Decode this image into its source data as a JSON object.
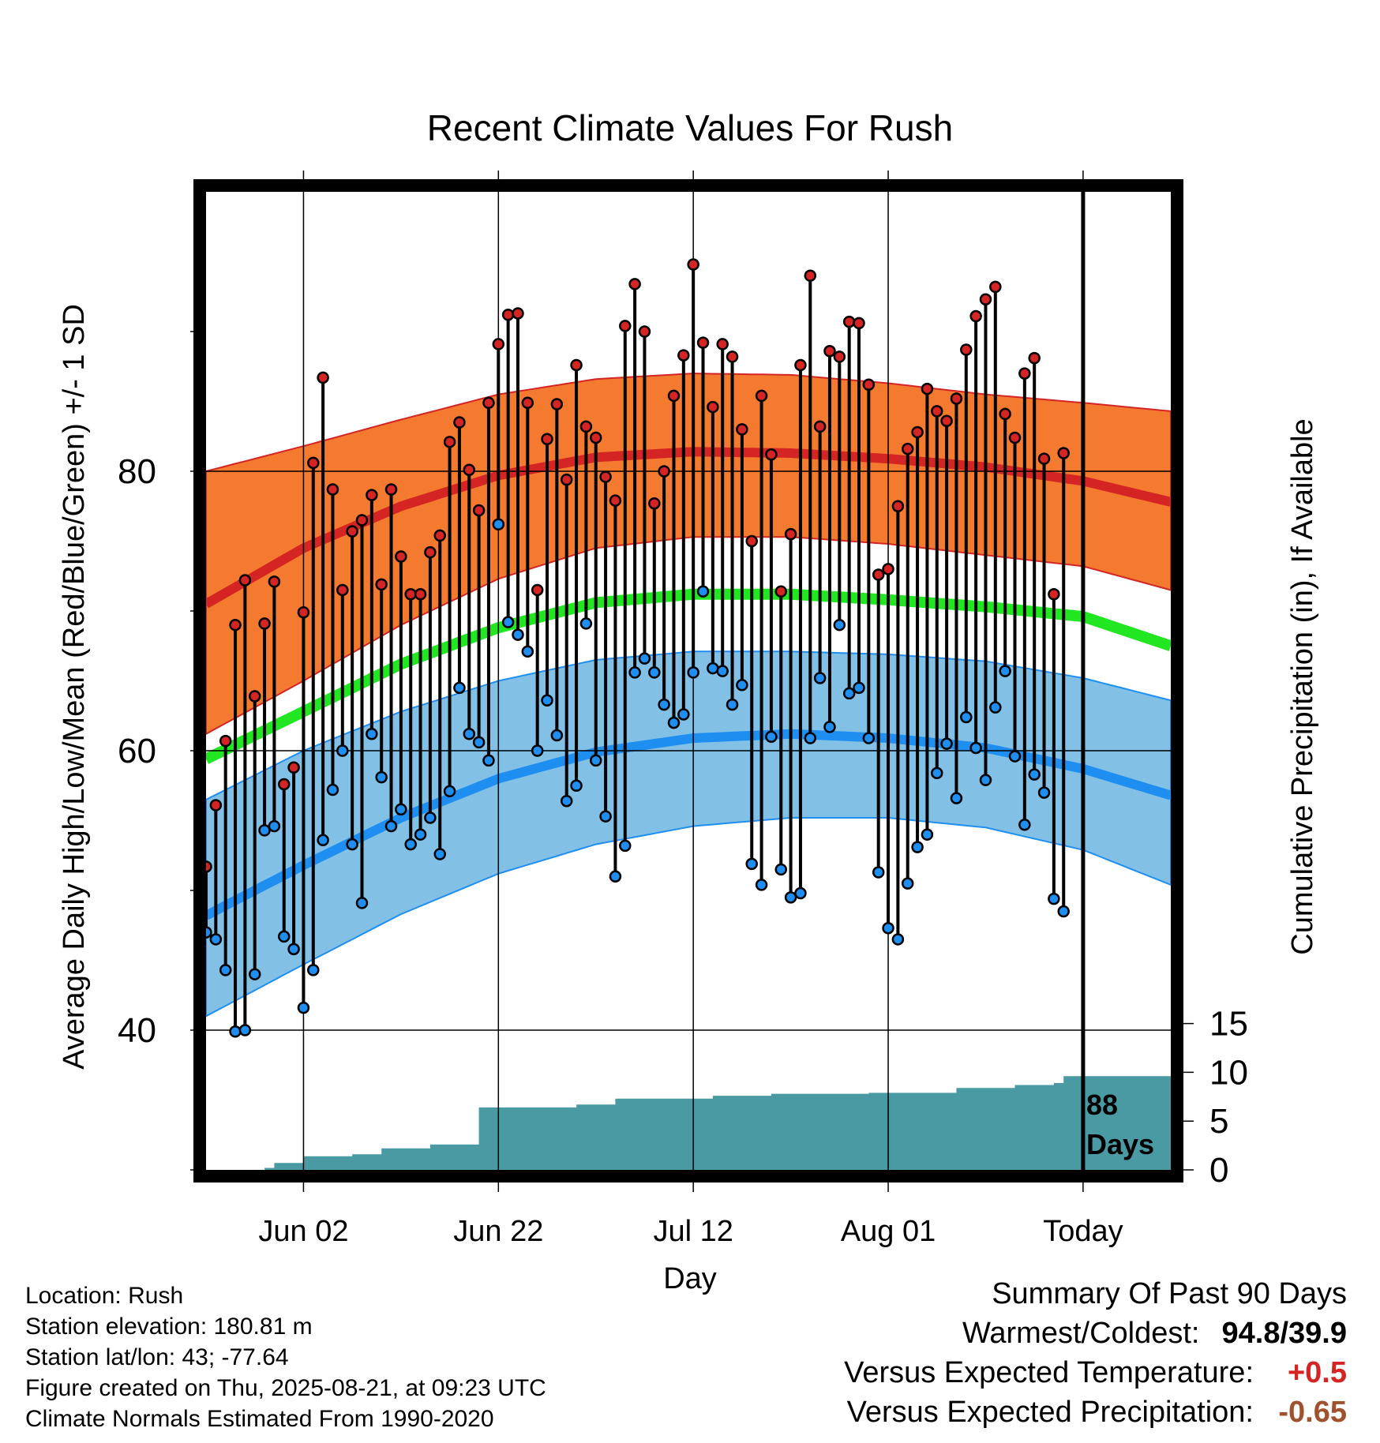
{
  "chart_data": {
    "type": "line",
    "title": "Recent Climate Values For Rush",
    "xlabel": "Day",
    "ylabel_left": "Average Daily High/Low/Mean (Red/Blue/Green) +/- 1 SD",
    "ylabel_right": "Cumulative Precipitation (in), If Available",
    "x_domain_days": [
      -90,
      9
    ],
    "y_left_range": [
      30,
      100
    ],
    "y_left_ticks": [
      40,
      60,
      80
    ],
    "y_right_range": [
      0,
      50
    ],
    "y_right_ticks": [
      0,
      5,
      10,
      15
    ],
    "x_ticks": [
      {
        "day": -80,
        "label": "Jun 02"
      },
      {
        "day": -60,
        "label": "Jun 22"
      },
      {
        "day": -40,
        "label": "Jul 12"
      },
      {
        "day": -20,
        "label": "Aug 01"
      },
      {
        "day": 0,
        "label": "Today"
      }
    ],
    "days_label": [
      "88",
      "Days"
    ],
    "grid": true,
    "normals": {
      "days": [
        -90,
        -80,
        -70,
        -60,
        -50,
        -40,
        -30,
        -20,
        -10,
        0,
        9
      ],
      "high_mean": [
        70.5,
        74.5,
        77.5,
        79.7,
        81.0,
        81.4,
        81.3,
        80.9,
        80.3,
        79.3,
        77.8
      ],
      "high_upper": [
        80.0,
        81.8,
        83.7,
        85.5,
        86.6,
        87.0,
        86.9,
        86.3,
        85.5,
        84.9,
        84.3
      ],
      "high_lower": [
        61.2,
        65.0,
        69.0,
        72.3,
        74.5,
        75.3,
        75.3,
        74.8,
        74.0,
        73.2,
        71.5
      ],
      "mean": [
        59.4,
        62.8,
        66.2,
        68.8,
        70.6,
        71.2,
        71.2,
        70.8,
        70.3,
        69.6,
        67.5
      ],
      "low_mean": [
        48.2,
        51.8,
        55.2,
        58.0,
        59.9,
        60.9,
        61.2,
        60.9,
        60.2,
        58.7,
        56.8
      ],
      "low_upper": [
        56.5,
        60.0,
        62.8,
        65.0,
        66.5,
        67.1,
        67.1,
        66.9,
        66.4,
        65.2,
        63.6
      ],
      "low_lower": [
        41.0,
        44.7,
        48.3,
        51.2,
        53.3,
        54.6,
        55.2,
        55.2,
        54.5,
        52.9,
        50.4
      ]
    },
    "daily_days": [
      -90,
      -89,
      -88,
      -87,
      -86,
      -85,
      -84,
      -83,
      -82,
      -81,
      -80,
      -79,
      -78,
      -77,
      -76,
      -75,
      -74,
      -73,
      -72,
      -71,
      -70,
      -69,
      -68,
      -67,
      -66,
      -65,
      -64,
      -63,
      -62,
      -61,
      -60,
      -59,
      -58,
      -57,
      -56,
      -55,
      -54,
      -53,
      -52,
      -51,
      -50,
      -49,
      -48,
      -47,
      -46,
      -45,
      -44,
      -43,
      -42,
      -41,
      -40,
      -39,
      -38,
      -37,
      -36,
      -35,
      -34,
      -33,
      -32,
      -31,
      -30,
      -29,
      -28,
      -27,
      -26,
      -25,
      -24,
      -23,
      -22,
      -21,
      -20,
      -19,
      -18,
      -17,
      -16,
      -15,
      -14,
      -13,
      -12,
      -11,
      -10,
      -9,
      -8,
      -7,
      -6,
      -5,
      -4,
      -3,
      -2
    ],
    "daily_high": [
      51.7,
      56.1,
      60.7,
      69.0,
      72.2,
      63.9,
      69.1,
      72.1,
      57.6,
      58.8,
      69.9,
      80.6,
      86.7,
      78.7,
      71.5,
      75.7,
      76.5,
      78.3,
      71.9,
      78.7,
      73.9,
      71.2,
      71.2,
      74.2,
      75.4,
      82.1,
      83.5,
      80.1,
      77.2,
      84.9,
      89.1,
      91.2,
      91.3,
      84.9,
      71.5,
      82.3,
      84.8,
      79.4,
      87.6,
      83.2,
      82.4,
      79.6,
      77.9,
      90.4,
      93.4,
      90.0,
      77.7,
      80.0,
      85.4,
      88.3,
      94.8,
      89.2,
      84.6,
      89.1,
      88.2,
      83.0,
      75.0,
      85.4,
      81.2,
      71.4,
      75.5,
      87.6,
      94.0,
      83.2,
      88.6,
      88.2,
      90.7,
      90.6,
      86.2,
      72.6,
      73.0,
      77.5,
      81.6,
      82.8,
      85.9,
      84.3,
      83.6,
      85.2,
      88.7,
      91.1,
      92.3,
      93.2,
      84.1,
      82.4,
      87.0,
      88.1,
      80.9,
      71.2,
      81.3
    ],
    "daily_low": [
      47.0,
      46.5,
      44.3,
      39.9,
      40.0,
      44.0,
      54.3,
      54.6,
      46.7,
      45.8,
      41.6,
      44.3,
      53.6,
      57.2,
      60.0,
      53.3,
      49.1,
      61.2,
      58.1,
      54.6,
      55.8,
      53.3,
      54.0,
      55.2,
      52.6,
      57.1,
      64.5,
      61.2,
      60.6,
      59.3,
      76.2,
      69.2,
      68.3,
      67.1,
      60.0,
      63.6,
      61.1,
      56.4,
      57.5,
      69.1,
      59.3,
      55.3,
      51.0,
      53.2,
      65.6,
      66.6,
      65.6,
      63.3,
      62.0,
      62.6,
      65.6,
      71.4,
      65.9,
      65.7,
      63.3,
      64.7,
      51.9,
      50.4,
      61.0,
      51.5,
      49.5,
      49.8,
      60.9,
      65.2,
      61.7,
      69.0,
      64.1,
      64.5,
      60.9,
      51.3,
      47.3,
      46.5,
      50.5,
      53.1,
      54.0,
      58.4,
      60.5,
      56.6,
      62.4,
      60.2,
      57.9,
      63.1,
      65.7,
      59.6,
      54.7,
      58.3,
      57.0,
      49.4,
      48.5
    ],
    "precip_cumulative": {
      "days": [
        -90,
        -84,
        -83,
        -80,
        -75,
        -72,
        -67,
        -62,
        -52,
        -48,
        -38,
        -32,
        -22,
        -13,
        -7,
        -3,
        -2,
        9
      ],
      "values": [
        0,
        0.2,
        0.7,
        1.4,
        1.6,
        2.2,
        2.6,
        6.4,
        6.7,
        7.3,
        7.6,
        7.8,
        7.9,
        8.4,
        8.7,
        8.9,
        9.6,
        9.6
      ]
    }
  },
  "footer": {
    "location": "Location: Rush",
    "elevation": "Station elevation: 180.81 m",
    "latlon": "Station lat/lon: 43; -77.64",
    "created": "Figure created on Thu, 2025-08-21, at 09:23 UTC",
    "normals": "Climate Normals Estimated From 1990-2020"
  },
  "summary": {
    "title": "Summary Of Past 90 Days",
    "warm_label": "Warmest/Coldest:",
    "warm_value": "94.8",
    "warm_sep": "/",
    "cold_value": "39.9",
    "temp_label": "Versus Expected Temperature:",
    "temp_value": "+0.5",
    "precip_label": "Versus Expected Precipitation:",
    "precip_value": "-0.65"
  },
  "colors": {
    "high_band": "#f47a30",
    "high_line": "#d42424",
    "mean_line": "#22e622",
    "low_band": "#82c0e6",
    "low_line": "#1e8ef0",
    "precip": "#4a9aa4",
    "high_dot": "#d42424",
    "low_dot": "#1e8ef0",
    "warm_value": "#000000",
    "temp_value": "#d42424",
    "precip_value": "#a0522d"
  }
}
